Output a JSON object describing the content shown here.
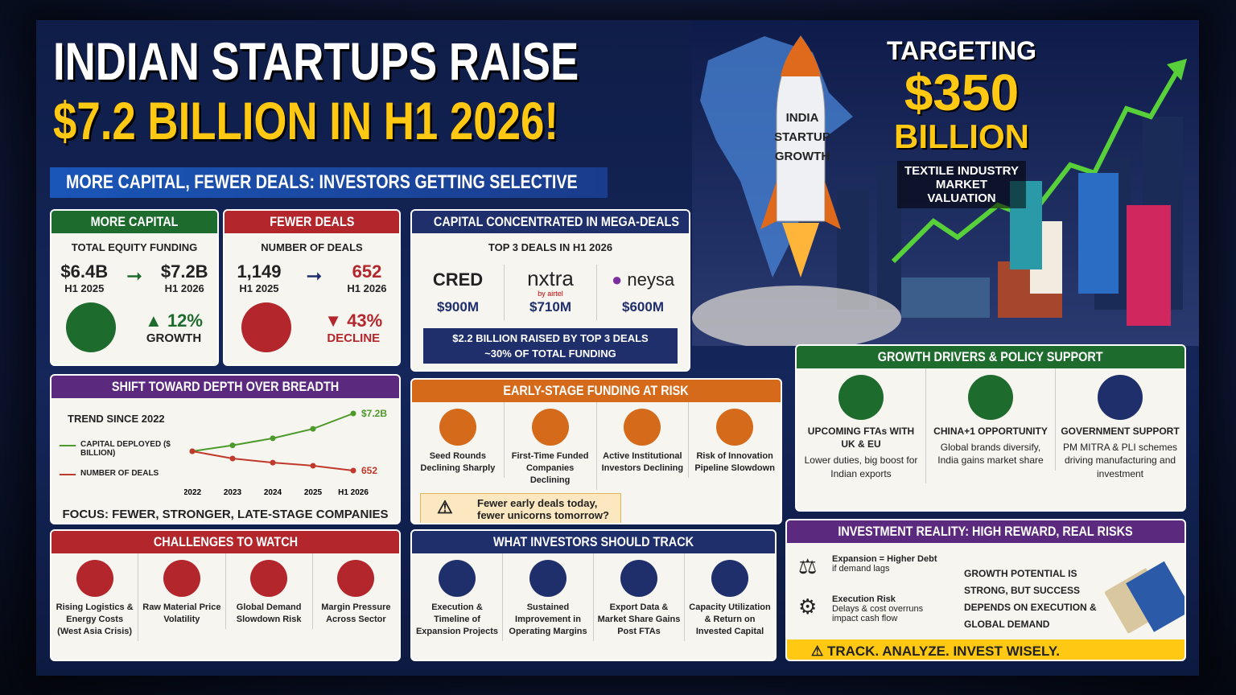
{
  "header": {
    "title_line1": "INDIAN STARTUPS RAISE",
    "title_line2": "$7.2 BILLION IN H1 2026!",
    "subtitle": "MORE CAPITAL, FEWER DEALS: INVESTORS GETTING SELECTIVE"
  },
  "hero": {
    "rocket_label": [
      "INDIA",
      "STARTUP",
      "GROWTH"
    ],
    "target": {
      "lead": "TARGETING",
      "amount": "$350",
      "unit": "BILLION",
      "caption": "TEXTILE INDUSTRY MARKET VALUATION"
    }
  },
  "more_capital": {
    "title": "MORE CAPITAL",
    "subtitle": "TOTAL EQUITY FUNDING",
    "from": {
      "value": "$6.4B",
      "period": "H1 2025"
    },
    "to": {
      "value": "$7.2B",
      "period": "H1 2026"
    },
    "change": "12%",
    "change_label": "GROWTH"
  },
  "fewer_deals": {
    "title": "FEWER DEALS",
    "subtitle": "NUMBER OF DEALS",
    "from": {
      "value": "1,149",
      "period": "H1 2025"
    },
    "to": {
      "value": "652",
      "period": "H1 2026"
    },
    "change": "43%",
    "change_label": "DECLINE"
  },
  "mega_deals": {
    "title": "CAPITAL CONCENTRATED IN MEGA-DEALS",
    "subtitle": "TOP 3 DEALS IN H1 2026",
    "deals": [
      {
        "company": "CRED",
        "amount": "$900M"
      },
      {
        "company": "nxtra",
        "tag": "by airtel",
        "amount": "$710M"
      },
      {
        "company": "neysa",
        "amount": "$600M"
      }
    ],
    "summary": [
      "$2.2 BILLION RAISED BY TOP 3 DEALS",
      "~30% OF TOTAL FUNDING"
    ]
  },
  "depth": {
    "title": "SHIFT TOWARD DEPTH OVER BREADTH",
    "trend_label": "TREND SINCE 2022",
    "chart_data": {
      "type": "line",
      "categories": [
        "2022",
        "2023",
        "2024",
        "2025",
        "H1 2026"
      ],
      "series": [
        {
          "name": "CAPITAL DEPLOYED ($ BILLION)",
          "color": "#4c9a2a",
          "values": [
            4.0,
            4.5,
            5.1,
            5.9,
            7.2
          ],
          "value_labels": [
            null,
            null,
            null,
            null,
            "$7.2B"
          ]
        },
        {
          "name": "NUMBER OF DEALS",
          "color": "#c0392b",
          "values": [
            1400,
            1120,
            960,
            840,
            652
          ]
        }
      ]
    },
    "focus": "FOCUS: FEWER, STRONGER, LATE-STAGE COMPANIES"
  },
  "early_stage": {
    "title": "EARLY-STAGE FUNDING AT RISK",
    "items": [
      "Seed Rounds Declining Sharply",
      "First-Time Funded Companies Declining",
      "Active Institutional Investors Declining",
      "Risk of Innovation Pipeline Slowdown"
    ],
    "warning": "Fewer early deals today, fewer unicorns tomorrow?"
  },
  "growth_drivers": {
    "title": "GROWTH DRIVERS & POLICY SUPPORT",
    "items": [
      {
        "title": "UPCOMING FTAs WITH UK & EU",
        "text": "Lower duties, big boost for Indian exports"
      },
      {
        "title": "CHINA+1 OPPORTUNITY",
        "text": "Global brands diversify, India gains market share"
      },
      {
        "title": "GOVERNMENT SUPPORT",
        "text": "PM MITRA & PLI schemes driving manufacturing and investment"
      }
    ]
  },
  "challenges": {
    "title": "CHALLENGES TO WATCH",
    "items": [
      "Rising Logistics & Energy Costs (West Asia Crisis)",
      "Raw Material Price Volatility",
      "Global Demand Slowdown Risk",
      "Margin Pressure Across Sector"
    ]
  },
  "track": {
    "title": "WHAT INVESTORS SHOULD TRACK",
    "items": [
      "Execution & Timeline of Expansion Projects",
      "Sustained Improvement in Operating Margins",
      "Export Data & Market Share Gains Post FTAs",
      "Capacity Utilization & Return on Invested Capital"
    ]
  },
  "reality": {
    "title": "INVESTMENT REALITY: HIGH REWARD, REAL RISKS",
    "risks": [
      {
        "title": "Expansion = Higher Debt",
        "text": "if demand lags"
      },
      {
        "title": "Execution Risk",
        "text": "Delays & cost overruns impact cash flow"
      }
    ],
    "conclusion": "GROWTH POTENTIAL IS STRONG, BUT SUCCESS DEPENDS ON EXECUTION & GLOBAL DEMAND",
    "footer": "TRACK. ANALYZE. INVEST WISELY."
  }
}
